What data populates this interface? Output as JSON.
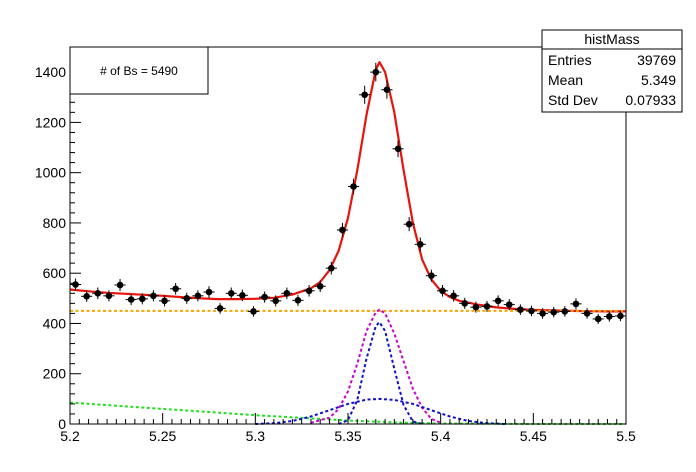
{
  "chart_data": {
    "type": "scatter",
    "title": "",
    "xlabel": "",
    "ylabel": "",
    "xlim": [
      5.2,
      5.5
    ],
    "ylim": [
      0,
      1500
    ],
    "x_ticks": [
      "5.2",
      "5.25",
      "5.3",
      "5.35",
      "5.4",
      "5.45",
      "5.5"
    ],
    "x_tick_values": [
      5.2,
      5.25,
      5.3,
      5.35,
      5.4,
      5.45,
      5.5
    ],
    "y_ticks": [
      "0",
      "200",
      "400",
      "600",
      "800",
      "1000",
      "1200",
      "1400"
    ],
    "y_tick_values": [
      0,
      200,
      400,
      600,
      800,
      1000,
      1200,
      1400
    ],
    "annotation": "# of Bs = 5490",
    "stats_box": {
      "title": "histMass",
      "rows": [
        {
          "label": "Entries",
          "value": "39769"
        },
        {
          "label": "Mean",
          "value": "5.349"
        },
        {
          "label": "Std Dev",
          "value": "0.07933"
        }
      ]
    },
    "histogram": {
      "bin_width": 0.006,
      "x": [
        5.203,
        5.209,
        5.215,
        5.221,
        5.227,
        5.233,
        5.239,
        5.245,
        5.251,
        5.257,
        5.263,
        5.269,
        5.275,
        5.281,
        5.287,
        5.293,
        5.299,
        5.305,
        5.311,
        5.317,
        5.323,
        5.329,
        5.335,
        5.341,
        5.347,
        5.353,
        5.359,
        5.365,
        5.371,
        5.377,
        5.383,
        5.389,
        5.395,
        5.401,
        5.407,
        5.413,
        5.419,
        5.425,
        5.431,
        5.437,
        5.443,
        5.449,
        5.455,
        5.461,
        5.467,
        5.473,
        5.479,
        5.485,
        5.491,
        5.497
      ],
      "y": [
        555,
        508,
        520,
        510,
        553,
        495,
        498,
        510,
        490,
        538,
        500,
        510,
        525,
        460,
        520,
        512,
        448,
        505,
        490,
        520,
        492,
        530,
        548,
        620,
        772,
        945,
        1310,
        1400,
        1330,
        1095,
        795,
        715,
        590,
        530,
        510,
        480,
        465,
        468,
        490,
        475,
        455,
        450,
        440,
        445,
        448,
        478,
        440,
        418,
        428,
        430
      ],
      "yerr": [
        24,
        22,
        23,
        22,
        24,
        22,
        22,
        22,
        22,
        23,
        22,
        22,
        23,
        21,
        23,
        23,
        21,
        22,
        22,
        23,
        22,
        23,
        23,
        25,
        28,
        31,
        36,
        37,
        36,
        33,
        28,
        27,
        24,
        23,
        23,
        22,
        22,
        22,
        22,
        22,
        21,
        21,
        21,
        21,
        21,
        22,
        21,
        20,
        21,
        21
      ]
    },
    "curves": [
      {
        "style": "solid",
        "color": "#e8140c",
        "role": "total fit",
        "x": [
          5.2,
          5.21,
          5.22,
          5.23,
          5.24,
          5.25,
          5.26,
          5.27,
          5.28,
          5.29,
          5.3,
          5.31,
          5.32,
          5.33,
          5.335,
          5.34,
          5.345,
          5.35,
          5.355,
          5.36,
          5.365,
          5.367,
          5.37,
          5.375,
          5.38,
          5.385,
          5.39,
          5.395,
          5.4,
          5.405,
          5.41,
          5.42,
          5.43,
          5.44,
          5.45,
          5.46,
          5.47,
          5.48,
          5.49,
          5.5
        ],
        "y": [
          535,
          528,
          522,
          518,
          514,
          510,
          505,
          500,
          497,
          497,
          498,
          502,
          515,
          540,
          565,
          612,
          690,
          820,
          1010,
          1230,
          1410,
          1440,
          1400,
          1240,
          1010,
          800,
          655,
          575,
          530,
          505,
          490,
          475,
          464,
          458,
          454,
          452,
          450,
          449,
          448,
          448
        ]
      },
      {
        "style": "dashed",
        "color": "#f5a500",
        "role": "flat background",
        "x": [
          5.2,
          5.5
        ],
        "y": [
          450,
          450
        ]
      },
      {
        "style": "dashed",
        "color": "#22dd22",
        "role": "falling background",
        "x": [
          5.2,
          5.25,
          5.3,
          5.35,
          5.38,
          5.4,
          5.45,
          5.5
        ],
        "y": [
          85,
          60,
          35,
          14,
          5,
          2,
          0,
          0
        ]
      },
      {
        "style": "dashed",
        "color": "#cc00cc",
        "role": "signal",
        "x": [
          5.33,
          5.34,
          5.345,
          5.35,
          5.355,
          5.36,
          5.365,
          5.367,
          5.37,
          5.375,
          5.38,
          5.385,
          5.39,
          5.395,
          5.4
        ],
        "y": [
          5,
          25,
          60,
          130,
          240,
          370,
          445,
          455,
          440,
          360,
          250,
          140,
          65,
          20,
          5
        ]
      },
      {
        "style": "dashed",
        "color": "#1010cc",
        "role": "narrow gaussian",
        "x": [
          5.345,
          5.35,
          5.355,
          5.36,
          5.365,
          5.367,
          5.37,
          5.375,
          5.38,
          5.385,
          5.39
        ],
        "y": [
          0,
          15,
          95,
          260,
          390,
          405,
          370,
          220,
          75,
          10,
          0
        ]
      },
      {
        "style": "dashed",
        "color": "#1010cc",
        "role": "wide gaussian",
        "x": [
          5.3,
          5.31,
          5.32,
          5.33,
          5.34,
          5.35,
          5.36,
          5.367,
          5.375,
          5.385,
          5.395,
          5.405,
          5.415,
          5.425,
          5.435
        ],
        "y": [
          0,
          3,
          12,
          30,
          55,
          80,
          97,
          100,
          96,
          80,
          55,
          30,
          12,
          3,
          0
        ]
      }
    ]
  }
}
